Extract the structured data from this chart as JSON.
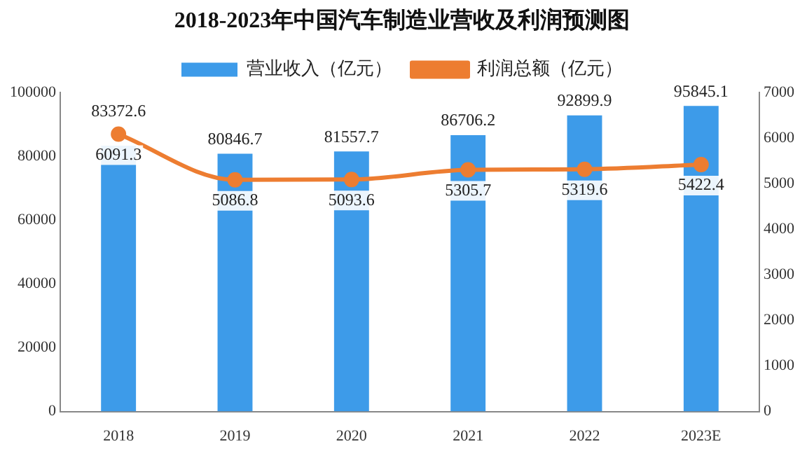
{
  "chart_data": {
    "type": "bar",
    "title": "2018-2023年中国汽车制造业营收及利润预测图",
    "categories": [
      "2018",
      "2019",
      "2020",
      "2021",
      "2022",
      "2023E"
    ],
    "series": [
      {
        "name": "营业收入（亿元）",
        "color": "#3d9be9",
        "values": [
          83372.6,
          80846.7,
          81557.7,
          86706.2,
          92899.9,
          95845.1
        ]
      },
      {
        "name": "利润总额（亿元）",
        "type": "line",
        "axis": "y2",
        "color": "#ed7d31",
        "values": [
          6091.3,
          5086.8,
          5093.6,
          5305.7,
          5319.6,
          5422.4
        ]
      }
    ],
    "ylim": [
      0,
      100000
    ],
    "yticks": [
      0,
      20000,
      40000,
      60000,
      80000,
      100000
    ],
    "y2lim": [
      0,
      7000
    ],
    "y2ticks": [
      0,
      1000,
      2000,
      3000,
      4000,
      5000,
      6000,
      7000
    ],
    "data_labels": true,
    "legend": "top",
    "marker": "circle",
    "line_style": "solid",
    "grid": false
  }
}
